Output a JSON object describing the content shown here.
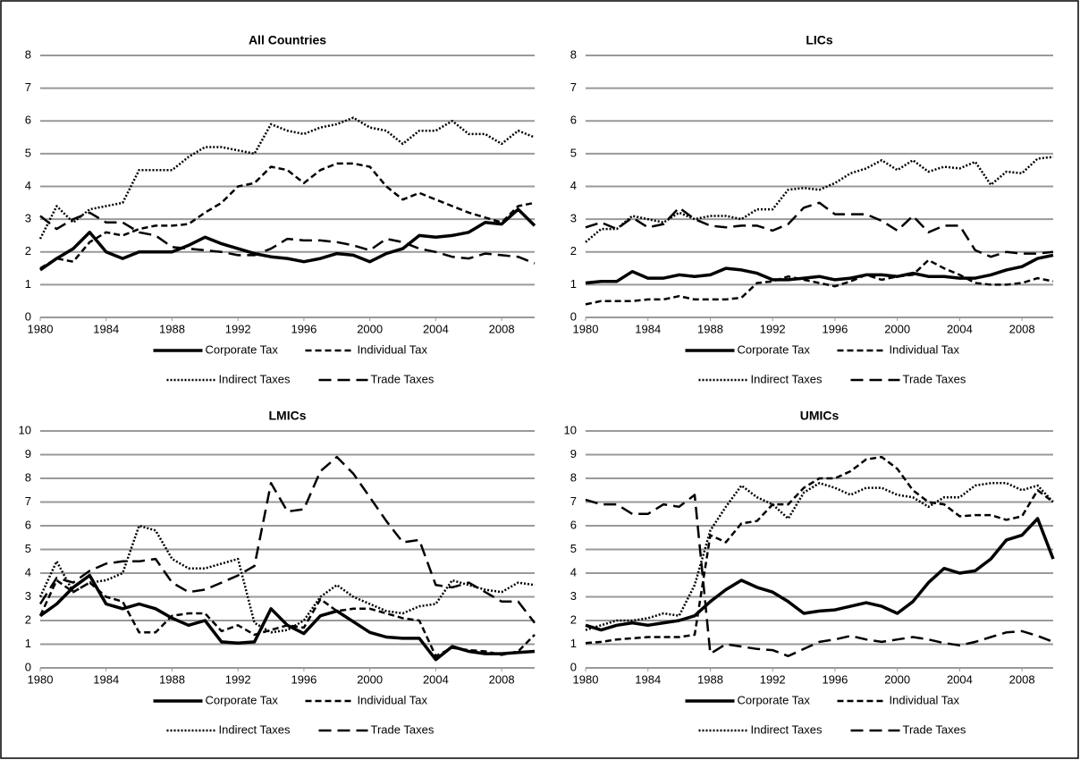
{
  "chart_data": [
    {
      "type": "line",
      "title": "All Countries",
      "x": [
        1980,
        1981,
        1982,
        1983,
        1984,
        1985,
        1986,
        1987,
        1988,
        1989,
        1990,
        1991,
        1992,
        1993,
        1994,
        1995,
        1996,
        1997,
        1998,
        1999,
        2000,
        2001,
        2002,
        2003,
        2004,
        2005,
        2006,
        2007,
        2008,
        2009,
        2010
      ],
      "xlim": [
        1980,
        2010
      ],
      "xticks": [
        1980,
        1984,
        1988,
        1992,
        1996,
        2000,
        2004,
        2008
      ],
      "ylim": [
        0,
        8
      ],
      "yticks": [
        0,
        1,
        2,
        3,
        4,
        5,
        6,
        7,
        8
      ],
      "grid": true,
      "series": [
        {
          "name": "Corporate Tax",
          "color": "#000000",
          "style": "solid",
          "values": [
            1.45,
            1.8,
            2.1,
            2.6,
            2.0,
            1.8,
            2.0,
            2.0,
            2.0,
            2.2,
            2.45,
            2.25,
            2.1,
            1.95,
            1.85,
            1.8,
            1.7,
            1.8,
            1.95,
            1.9,
            1.7,
            1.95,
            2.1,
            2.5,
            2.45,
            2.5,
            2.6,
            2.9,
            2.85,
            3.3,
            2.8
          ]
        },
        {
          "name": "Individual Tax",
          "color": "#000000",
          "style": "dashed",
          "values": [
            1.5,
            1.8,
            1.7,
            2.3,
            2.6,
            2.5,
            2.7,
            2.8,
            2.8,
            2.85,
            3.2,
            3.5,
            4.0,
            4.1,
            4.6,
            4.5,
            4.1,
            4.5,
            4.7,
            4.7,
            4.6,
            4.0,
            3.6,
            3.8,
            3.6,
            3.4,
            3.2,
            3.05,
            2.9,
            3.4,
            3.5
          ]
        },
        {
          "name": "Indirect Taxes",
          "color": "#000000",
          "style": "dotted",
          "values": [
            2.4,
            3.4,
            2.9,
            3.3,
            3.4,
            3.5,
            4.5,
            4.5,
            4.5,
            4.9,
            5.2,
            5.2,
            5.1,
            5.0,
            5.9,
            5.7,
            5.6,
            5.8,
            5.9,
            6.1,
            5.8,
            5.7,
            5.3,
            5.7,
            5.7,
            6.0,
            5.6,
            5.6,
            5.3,
            5.7,
            5.5
          ]
        },
        {
          "name": "Trade Taxes",
          "color": "#000000",
          "style": "longdash",
          "values": [
            3.1,
            2.7,
            3.0,
            3.2,
            2.9,
            2.9,
            2.6,
            2.5,
            2.15,
            2.1,
            2.05,
            2.0,
            1.9,
            1.9,
            2.1,
            2.4,
            2.35,
            2.35,
            2.3,
            2.2,
            2.05,
            2.4,
            2.3,
            2.1,
            2.0,
            1.85,
            1.8,
            1.95,
            1.9,
            1.85,
            1.65
          ]
        }
      ]
    },
    {
      "type": "line",
      "title": "LICs",
      "x": [
        1980,
        1981,
        1982,
        1983,
        1984,
        1985,
        1986,
        1987,
        1988,
        1989,
        1990,
        1991,
        1992,
        1993,
        1994,
        1995,
        1996,
        1997,
        1998,
        1999,
        2000,
        2001,
        2002,
        2003,
        2004,
        2005,
        2006,
        2007,
        2008,
        2009,
        2010
      ],
      "xlim": [
        1980,
        2010
      ],
      "xticks": [
        1980,
        1984,
        1988,
        1992,
        1996,
        2000,
        2004,
        2008
      ],
      "ylim": [
        0,
        8
      ],
      "yticks": [
        0,
        1,
        2,
        3,
        4,
        5,
        6,
        7,
        8
      ],
      "grid": true,
      "series": [
        {
          "name": "Corporate Tax",
          "color": "#000000",
          "style": "solid",
          "values": [
            1.05,
            1.1,
            1.1,
            1.4,
            1.2,
            1.2,
            1.3,
            1.25,
            1.3,
            1.5,
            1.45,
            1.35,
            1.15,
            1.15,
            1.2,
            1.25,
            1.15,
            1.2,
            1.3,
            1.3,
            1.25,
            1.35,
            1.25,
            1.25,
            1.2,
            1.2,
            1.3,
            1.45,
            1.55,
            1.8,
            1.9
          ]
        },
        {
          "name": "Individual Tax",
          "color": "#000000",
          "style": "dashed",
          "values": [
            0.4,
            0.5,
            0.5,
            0.5,
            0.55,
            0.55,
            0.65,
            0.55,
            0.55,
            0.55,
            0.6,
            1.05,
            1.1,
            1.25,
            1.15,
            1.05,
            0.95,
            1.1,
            1.3,
            1.15,
            1.25,
            1.3,
            1.75,
            1.5,
            1.3,
            1.05,
            1.0,
            1.0,
            1.05,
            1.2,
            1.1
          ]
        },
        {
          "name": "Indirect Taxes",
          "color": "#000000",
          "style": "dotted",
          "values": [
            2.3,
            2.7,
            2.7,
            3.1,
            3.0,
            2.9,
            3.2,
            3.0,
            3.1,
            3.1,
            3.0,
            3.3,
            3.3,
            3.9,
            3.95,
            3.9,
            4.1,
            4.4,
            4.55,
            4.8,
            4.5,
            4.8,
            4.45,
            4.6,
            4.55,
            4.75,
            4.05,
            4.45,
            4.4,
            4.85,
            4.9
          ]
        },
        {
          "name": "Trade Taxes",
          "color": "#000000",
          "style": "longdash",
          "values": [
            2.75,
            2.9,
            2.7,
            3.05,
            2.75,
            2.85,
            3.35,
            3.0,
            2.8,
            2.75,
            2.8,
            2.8,
            2.65,
            2.85,
            3.35,
            3.5,
            3.15,
            3.15,
            3.15,
            2.95,
            2.65,
            3.1,
            2.6,
            2.8,
            2.8,
            2.05,
            1.85,
            2.0,
            1.95,
            1.95,
            2.0
          ]
        }
      ]
    },
    {
      "type": "line",
      "title": "LMICs",
      "x": [
        1980,
        1981,
        1982,
        1983,
        1984,
        1985,
        1986,
        1987,
        1988,
        1989,
        1990,
        1991,
        1992,
        1993,
        1994,
        1995,
        1996,
        1997,
        1998,
        1999,
        2000,
        2001,
        2002,
        2003,
        2004,
        2005,
        2006,
        2007,
        2008,
        2009,
        2010
      ],
      "xlim": [
        1980,
        2010
      ],
      "xticks": [
        1980,
        1984,
        1988,
        1992,
        1996,
        2000,
        2004,
        2008
      ],
      "ylim": [
        0,
        10
      ],
      "yticks": [
        0,
        1,
        2,
        3,
        4,
        5,
        6,
        7,
        8,
        9,
        10
      ],
      "grid": true,
      "series": [
        {
          "name": "Corporate Tax",
          "color": "#000000",
          "style": "solid",
          "values": [
            2.2,
            2.7,
            3.4,
            3.9,
            2.7,
            2.5,
            2.7,
            2.5,
            2.1,
            1.8,
            2.0,
            1.1,
            1.05,
            1.1,
            2.5,
            1.8,
            1.45,
            2.2,
            2.4,
            1.95,
            1.5,
            1.3,
            1.25,
            1.25,
            0.35,
            0.9,
            0.7,
            0.6,
            0.6,
            0.65,
            0.7
          ]
        },
        {
          "name": "Individual Tax",
          "color": "#000000",
          "style": "dashed",
          "values": [
            2.2,
            3.7,
            3.2,
            3.6,
            3.0,
            2.8,
            1.5,
            1.5,
            2.2,
            2.3,
            2.3,
            1.55,
            1.8,
            1.4,
            1.6,
            1.8,
            1.7,
            2.9,
            2.4,
            2.5,
            2.5,
            2.3,
            2.1,
            2.0,
            0.5,
            0.85,
            0.75,
            0.7,
            0.55,
            0.7,
            1.4
          ]
        },
        {
          "name": "Indirect Taxes",
          "color": "#000000",
          "style": "dotted",
          "values": [
            3.0,
            4.5,
            3.2,
            3.6,
            3.7,
            4.0,
            6.0,
            5.8,
            4.6,
            4.2,
            4.2,
            4.4,
            4.6,
            1.9,
            1.5,
            1.6,
            2.0,
            3.0,
            3.5,
            3.0,
            2.7,
            2.4,
            2.3,
            2.6,
            2.7,
            3.7,
            3.5,
            3.3,
            3.2,
            3.6,
            3.5
          ]
        },
        {
          "name": "Trade Taxes",
          "color": "#000000",
          "style": "longdash",
          "values": [
            2.7,
            3.8,
            3.6,
            4.1,
            4.4,
            4.5,
            4.5,
            4.6,
            3.6,
            3.2,
            3.3,
            3.6,
            3.9,
            4.3,
            7.8,
            6.6,
            6.7,
            8.3,
            8.9,
            8.2,
            7.2,
            6.2,
            5.3,
            5.4,
            3.5,
            3.4,
            3.6,
            3.2,
            2.8,
            2.8,
            1.9
          ]
        }
      ]
    },
    {
      "type": "line",
      "title": "UMICs",
      "x": [
        1980,
        1981,
        1982,
        1983,
        1984,
        1985,
        1986,
        1987,
        1988,
        1989,
        1990,
        1991,
        1992,
        1993,
        1994,
        1995,
        1996,
        1997,
        1998,
        1999,
        2000,
        2001,
        2002,
        2003,
        2004,
        2005,
        2006,
        2007,
        2008,
        2009,
        2010
      ],
      "xlim": [
        1980,
        2010
      ],
      "xticks": [
        1980,
        1984,
        1988,
        1992,
        1996,
        2000,
        2004,
        2008
      ],
      "ylim": [
        0,
        10
      ],
      "yticks": [
        0,
        1,
        2,
        3,
        4,
        5,
        6,
        7,
        8,
        9,
        10
      ],
      "grid": true,
      "series": [
        {
          "name": "Corporate Tax",
          "color": "#000000",
          "style": "solid",
          "values": [
            1.8,
            1.6,
            1.8,
            1.9,
            1.8,
            1.9,
            2.0,
            2.2,
            2.8,
            3.3,
            3.7,
            3.4,
            3.2,
            2.8,
            2.3,
            2.4,
            2.45,
            2.6,
            2.75,
            2.6,
            2.3,
            2.8,
            3.6,
            4.2,
            4.0,
            4.1,
            4.6,
            5.4,
            5.6,
            6.3,
            4.6
          ]
        },
        {
          "name": "Individual Tax",
          "color": "#000000",
          "style": "dashed",
          "values": [
            1.05,
            1.1,
            1.2,
            1.25,
            1.3,
            1.3,
            1.3,
            1.4,
            5.6,
            5.3,
            6.1,
            6.2,
            6.9,
            6.9,
            7.6,
            8.0,
            8.0,
            8.3,
            8.8,
            8.9,
            8.4,
            7.5,
            7.0,
            6.9,
            6.4,
            6.45,
            6.45,
            6.25,
            6.4,
            7.5,
            7.0
          ]
        },
        {
          "name": "Indirect Taxes",
          "color": "#000000",
          "style": "dotted",
          "values": [
            1.6,
            1.8,
            2.0,
            2.0,
            2.1,
            2.3,
            2.2,
            3.5,
            5.8,
            6.8,
            7.7,
            7.2,
            6.9,
            6.3,
            7.4,
            7.8,
            7.6,
            7.3,
            7.6,
            7.6,
            7.3,
            7.2,
            6.8,
            7.2,
            7.2,
            7.7,
            7.8,
            7.8,
            7.5,
            7.7,
            7.0
          ]
        },
        {
          "name": "Trade Taxes",
          "color": "#000000",
          "style": "longdash",
          "values": [
            7.1,
            6.9,
            6.9,
            6.5,
            6.5,
            6.9,
            6.8,
            7.3,
            0.6,
            1.0,
            0.9,
            0.8,
            0.75,
            0.5,
            0.8,
            1.1,
            1.2,
            1.35,
            1.2,
            1.1,
            1.2,
            1.3,
            1.2,
            1.05,
            0.95,
            1.1,
            1.3,
            1.5,
            1.55,
            1.35,
            1.1
          ]
        }
      ]
    }
  ]
}
